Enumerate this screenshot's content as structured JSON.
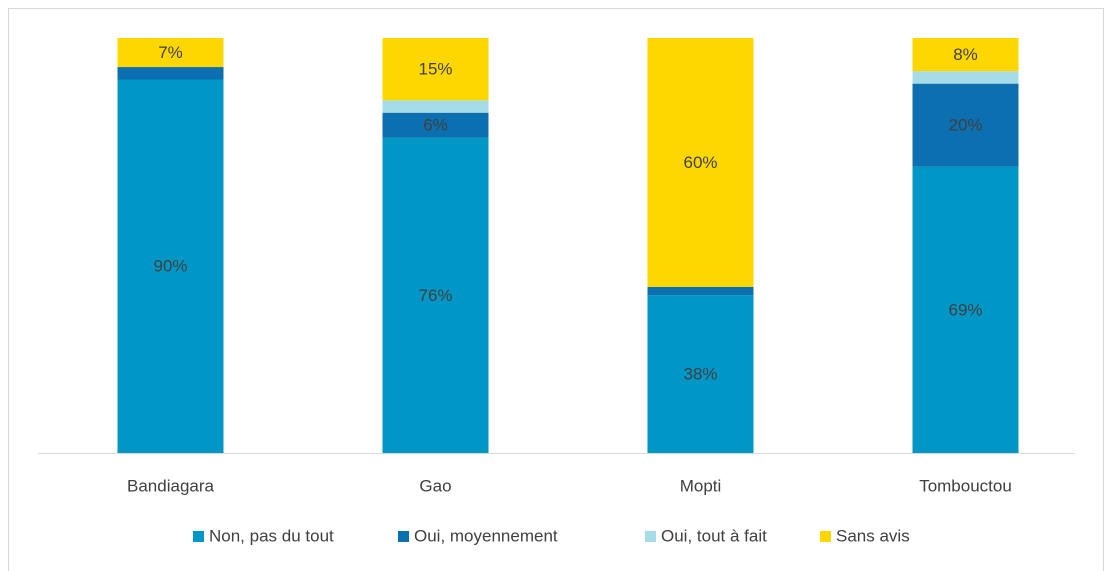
{
  "chart_data": {
    "type": "stacked-bar",
    "categories": [
      "Bandiagara",
      "Gao",
      "Mopti",
      "Tombouctou"
    ],
    "ylim": [
      0,
      100
    ],
    "series": [
      {
        "name": "Non, pas du tout",
        "color": "#0096c6",
        "values": [
          90,
          76,
          38,
          69
        ],
        "value_labels": [
          "90%",
          "76%",
          "38%",
          "69%"
        ]
      },
      {
        "name": "Oui, moyennement",
        "color": "#0b6fb0",
        "values": [
          3,
          6,
          2,
          20
        ],
        "value_labels": [
          null,
          "6%",
          null,
          "20%"
        ]
      },
      {
        "name": "Oui, tout à fait",
        "color": "#a6dbe8",
        "values": [
          0,
          3,
          0,
          3
        ],
        "value_labels": [
          null,
          null,
          null,
          null
        ]
      },
      {
        "name": "Sans avis",
        "color": "#ffd700",
        "values": [
          7,
          15,
          60,
          8
        ],
        "value_labels": [
          "7%",
          "15%",
          "60%",
          "8%"
        ]
      }
    ]
  }
}
